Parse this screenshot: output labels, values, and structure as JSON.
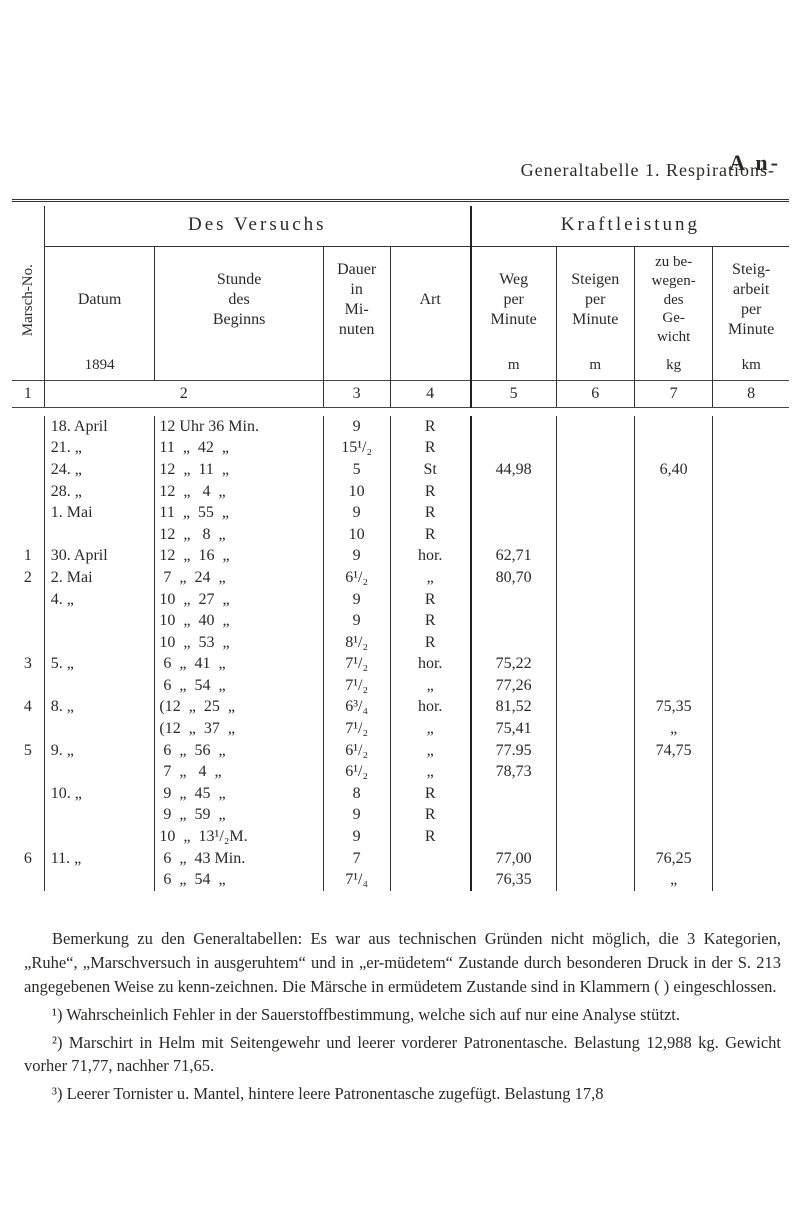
{
  "header": {
    "corner": "A n-",
    "caption": "Generaltabelle 1.  Respirations-"
  },
  "groups": {
    "left": "Des Versuchs",
    "right": "Kraftleistung"
  },
  "columns": {
    "marsch": "Marsch-No.",
    "datum": "Datum",
    "stunde": "Stunde\ndes\nBeginns",
    "dauer": "Dauer\nin\nMi-\nnuten",
    "art": "Art",
    "weg": "Weg\nper\nMinute",
    "steigen": "Steigen\nper\nMinute",
    "zu": "zu be-\nwegen-\ndes\nGe-\nwicht",
    "arbeit": "Steig-\narbeit\nper\nMinute"
  },
  "units": {
    "u1": "1894",
    "u5": "m",
    "u6": "m",
    "u7": "kg",
    "u8": "km"
  },
  "numHdr": [
    "1",
    "2",
    "3",
    "4",
    "5",
    "6",
    "7",
    "8"
  ],
  "rows": [
    {
      "m": "",
      "d": "18. April",
      "s": "12 Uhr 36 Min.",
      "du": "9",
      "a": "R",
      "w": "",
      "st": "",
      "z": "",
      "ar": ""
    },
    {
      "m": "",
      "d": "21.   „",
      "s": "11  „  42  „",
      "du": "15¹/₂",
      "a": "R",
      "w": "",
      "st": "",
      "z": "",
      "ar": ""
    },
    {
      "m": "",
      "d": "24.   „",
      "s": "12  „  11  „",
      "du": "5",
      "a": "St",
      "w": "44,98",
      "st": "",
      "z": "6,40",
      "ar": ""
    },
    {
      "m": "",
      "d": "28.   „",
      "s": "12  „   4  „",
      "du": "10",
      "a": "R",
      "w": "",
      "st": "",
      "z": "",
      "ar": ""
    },
    {
      "m": "",
      "d": " 1. Mai",
      "s": "11  „  55  „",
      "du": "9",
      "a": "R",
      "w": "",
      "st": "",
      "z": "",
      "ar": ""
    },
    {
      "m": "",
      "d": "",
      "s": "12  „   8  „",
      "du": "10",
      "a": "R",
      "w": "",
      "st": "",
      "z": "",
      "ar": ""
    },
    {
      "m": "1",
      "d": "30. April",
      "s": "12  „  16  „",
      "du": "9",
      "a": "hor.",
      "w": "62,71",
      "st": "",
      "z": "",
      "ar": ""
    },
    {
      "m": "2",
      "d": " 2. Mai",
      "s": " 7  „  24  „",
      "du": "6¹/₂",
      "a": "„",
      "w": "80,70",
      "st": "",
      "z": "",
      "ar": ""
    },
    {
      "m": "",
      "d": " 4.   „",
      "s": "10  „  27  „",
      "du": "9",
      "a": "R",
      "w": "",
      "st": "",
      "z": "",
      "ar": ""
    },
    {
      "m": "",
      "d": "",
      "s": "10  „  40  „",
      "du": "9",
      "a": "R",
      "w": "",
      "st": "",
      "z": "",
      "ar": ""
    },
    {
      "m": "",
      "d": "",
      "s": "10  „  53  „",
      "du": "8¹/₂",
      "a": "R",
      "w": "",
      "st": "",
      "z": "",
      "ar": ""
    },
    {
      "m": "3",
      "d": " 5.   „",
      "s": " 6  „  41  „",
      "du": "7¹/₂",
      "a": "hor.",
      "w": "75,22",
      "st": "",
      "z": "",
      "ar": ""
    },
    {
      "m": "",
      "d": "",
      "s": " 6  „  54  „",
      "du": "7¹/₂",
      "a": "„",
      "w": "77,26",
      "st": "",
      "z": "",
      "ar": ""
    },
    {
      "m": "4",
      "d": " 8.   „",
      "s": "(12  „  25  „",
      "du": "6³/₄",
      "a": "hor.",
      "w": "81,52",
      "st": "",
      "z": "75,35",
      "ar": ""
    },
    {
      "m": "",
      "d": "",
      "s": "(12  „  37  „",
      "du": "7¹/₂",
      "a": "„",
      "w": "75,41",
      "st": "",
      "z": "„",
      "ar": ""
    },
    {
      "m": "5",
      "d": " 9.   „",
      "s": " 6  „  56  „",
      "du": "6¹/₂",
      "a": "„",
      "w": "77.95",
      "st": "",
      "z": "74,75",
      "ar": ""
    },
    {
      "m": "",
      "d": "",
      "s": " 7  „   4  „",
      "du": "6¹/₂",
      "a": "„",
      "w": "78,73",
      "st": "",
      "z": "",
      "ar": ""
    },
    {
      "m": "",
      "d": "10.   „",
      "s": " 9  „  45  „",
      "du": "8",
      "a": "R",
      "w": "",
      "st": "",
      "z": "",
      "ar": ""
    },
    {
      "m": "",
      "d": "",
      "s": " 9  „  59  „",
      "du": "9",
      "a": "R",
      "w": "",
      "st": "",
      "z": "",
      "ar": ""
    },
    {
      "m": "",
      "d": "",
      "s": "10  „  13¹/₂M.",
      "du": "9",
      "a": "R",
      "w": "",
      "st": "",
      "z": "",
      "ar": ""
    },
    {
      "m": "6",
      "d": "11.   „",
      "s": " 6  „  43 Min.",
      "du": "7",
      "a": "",
      "w": "77,00",
      "st": "",
      "z": "76,25",
      "ar": ""
    },
    {
      "m": "",
      "d": "",
      "s": " 6  „  54  „",
      "du": "7¹/₄",
      "a": "",
      "w": "76,35",
      "st": "",
      "z": "„",
      "ar": ""
    }
  ],
  "footnotes": {
    "p1": "Bemerkung zu den Generaltabellen:  Es war aus technischen Gründen nicht möglich, die 3 Kategorien, „Ruhe“, „Marschversuch in ausgeruhtem“ und in „er-müdetem“ Zustande durch besonderen Druck in der S. 213 angegebenen Weise zu kenn-zeichnen.  Die Märsche in ermüdetem Zustande sind in Klammern ( ) eingeschlossen.",
    "p2": "¹) Wahrscheinlich Fehler in der Sauerstoffbestimmung, welche sich auf nur eine Analyse stützt.",
    "p3": "²) Marschirt in Helm mit Seitengewehr und leerer vorderer Patronentasche. Belastung 12,988 kg.  Gewicht vorher 71,77, nachher 71,65.",
    "p4": "³) Leerer Tornister u. Mantel, hintere leere Patronentasche zugefügt. Belastung 17,8"
  }
}
